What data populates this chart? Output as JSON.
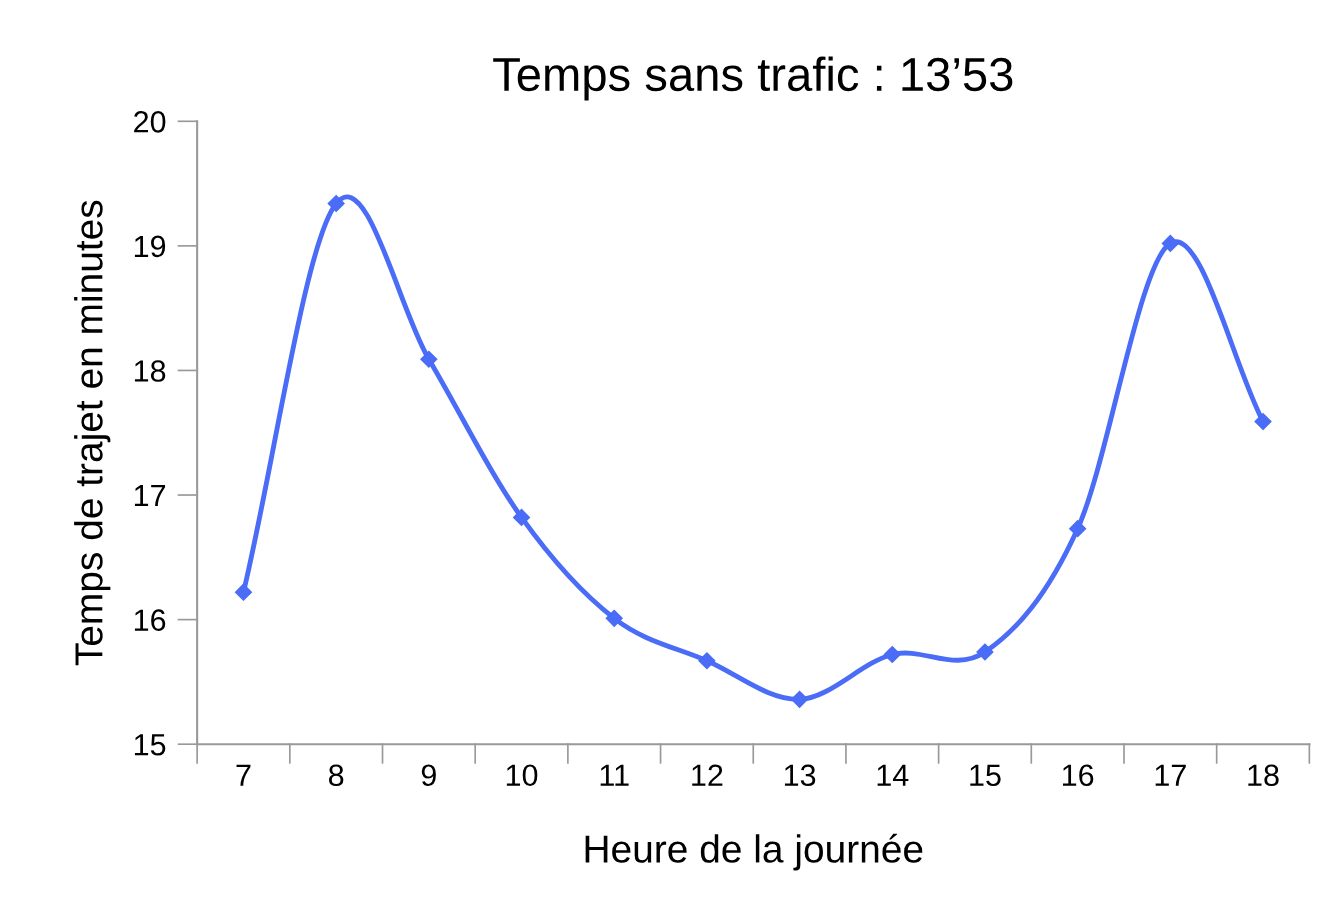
{
  "chart_data": {
    "type": "line",
    "title": "Temps sans trafic : 13’53",
    "xlabel": "Heure de la journée",
    "ylabel": "Temps de trajet en minutes",
    "categories": [
      "7",
      "8",
      "9",
      "10",
      "11",
      "12",
      "13",
      "14",
      "15",
      "16",
      "17",
      "18"
    ],
    "series": [
      {
        "color": "#4a6cf7",
        "values": [
          16.22,
          19.34,
          18.09,
          16.82,
          16.01,
          15.67,
          15.36,
          15.72,
          15.74,
          16.73,
          19.02,
          17.59
        ]
      }
    ],
    "ylim": [
      15,
      20
    ],
    "yticks": [
      15,
      16,
      17,
      18,
      19,
      20
    ],
    "marker": "diamond",
    "line_style": "solid",
    "grid": false,
    "legend": false
  }
}
